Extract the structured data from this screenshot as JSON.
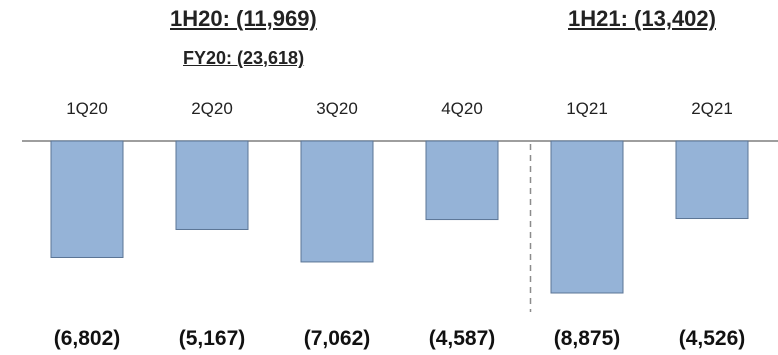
{
  "titles": {
    "h1_2020": "1H20: (11,969)",
    "fy_2020": "FY20: (23,618)",
    "h1_2021": "1H21: (13,402)"
  },
  "colors": {
    "bar_fill": "#95b3d7",
    "bar_stroke": "#5b7595",
    "baseline": "#7f7f7f",
    "divider": "#8c8c8c"
  },
  "chart_data": {
    "type": "bar",
    "categories": [
      "1Q20",
      "2Q20",
      "3Q20",
      "4Q20",
      "1Q21",
      "2Q21"
    ],
    "values": [
      -6802,
      -5167,
      -7062,
      -4587,
      -8875,
      -4526
    ],
    "value_labels": [
      "(6,802)",
      "(5,167)",
      "(7,062)",
      "(4,587)",
      "(8,875)",
      "(4,526)"
    ],
    "ylim": [
      -9000,
      0
    ],
    "grid": false,
    "divider_between": [
      "4Q20",
      "1Q21"
    ]
  }
}
